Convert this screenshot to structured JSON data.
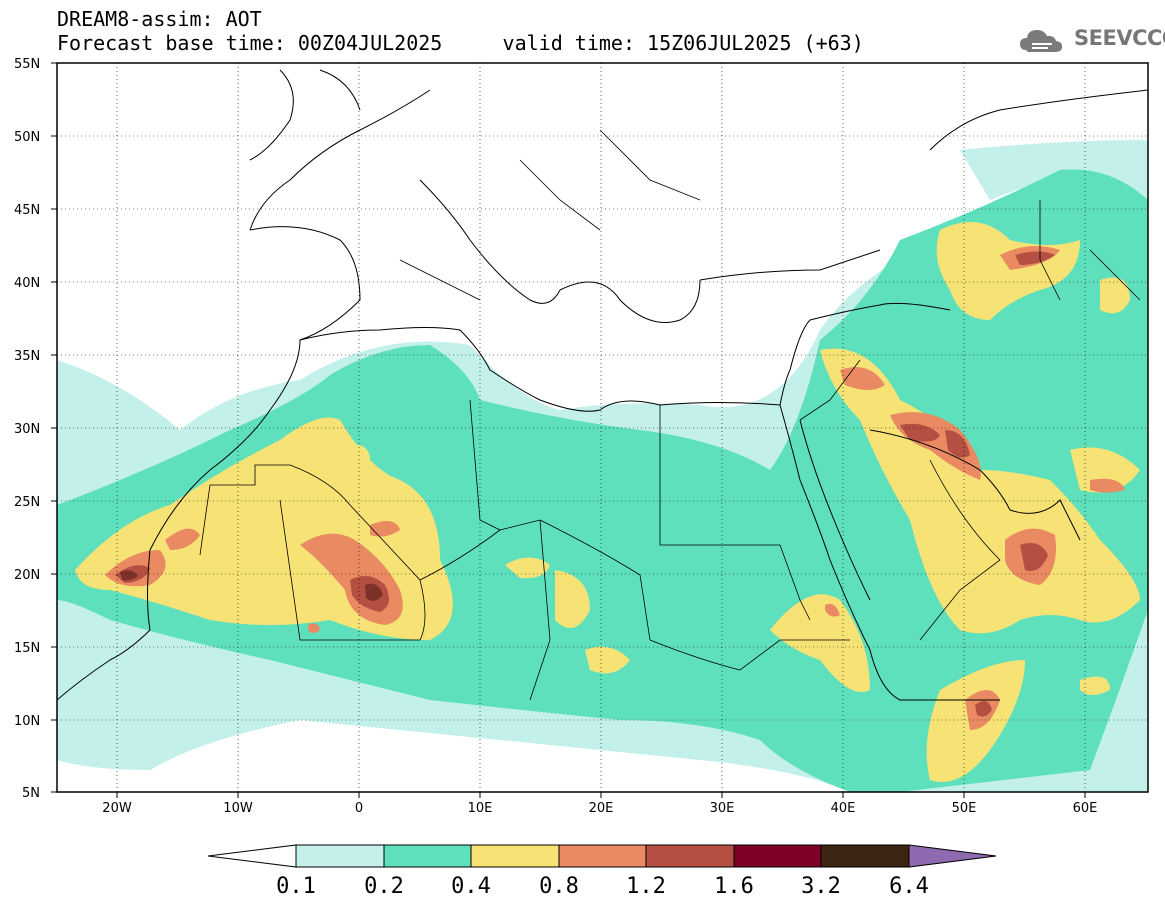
{
  "header": {
    "title": "DREAM8-assim: AOT",
    "base_time_label": "Forecast base time: 00Z04JUL2025",
    "valid_time_label": "valid time: 15Z06JUL2025 (+63)"
  },
  "logo": {
    "text": "SEEVCCC",
    "icon": "cloud-logo-icon"
  },
  "map": {
    "extent": {
      "lon": [
        -25,
        65
      ],
      "lat": [
        5,
        55
      ]
    },
    "lat_ticks": [
      "55N",
      "50N",
      "45N",
      "40N",
      "35N",
      "30N",
      "25N",
      "20N",
      "15N",
      "10N",
      "5N"
    ],
    "lon_ticks": [
      "20W",
      "10W",
      "0",
      "10E",
      "20E",
      "30E",
      "40E",
      "50E",
      "60E"
    ],
    "grid": "dotted"
  },
  "colorbar": {
    "labels": [
      "0.1",
      "0.2",
      "0.4",
      "0.8",
      "1.2",
      "1.6",
      "3.2",
      "6.4"
    ],
    "colors": [
      "#c3f0ea",
      "#5fe0bc",
      "#f7e375",
      "#e98a62",
      "#b44f42",
      "#7d0026",
      "#3c2613",
      "#8e6ab0"
    ]
  }
}
